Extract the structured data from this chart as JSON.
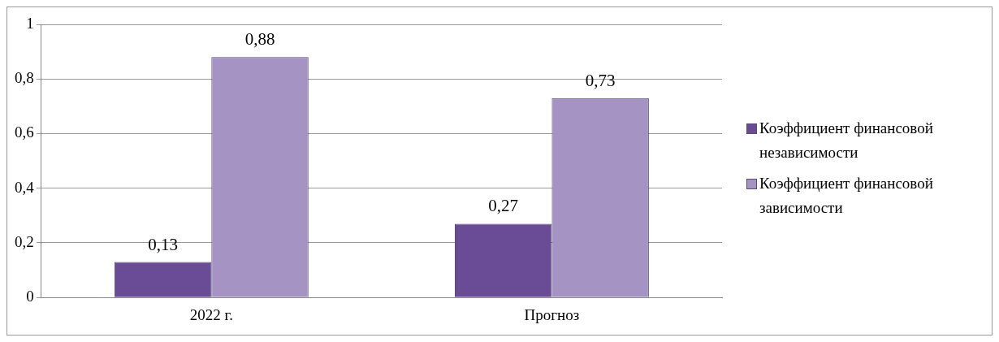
{
  "chart_data": {
    "type": "bar",
    "categories": [
      "2022 г.",
      "Прогноз"
    ],
    "series": [
      {
        "name": "Коэффициент финансовой независимости",
        "color": "#6a4b96",
        "values": [
          0.13,
          0.27
        ],
        "value_labels": [
          "0,13",
          "0,27"
        ]
      },
      {
        "name": "Коэффициент финансовой зависимости",
        "color": "#a593c4",
        "values": [
          0.88,
          0.73
        ],
        "value_labels": [
          "0,88",
          "0,73"
        ]
      }
    ],
    "ylim": [
      0,
      1
    ],
    "yticks": [
      0,
      {
        "value": 0.2,
        "label": "0,2"
      },
      {
        "value": 0.4,
        "label": "0,4"
      },
      {
        "value": 0.6,
        "label": "0,6"
      },
      {
        "value": 0.8,
        "label": "0,8"
      },
      1
    ],
    "grid": "y",
    "legend": "right"
  }
}
